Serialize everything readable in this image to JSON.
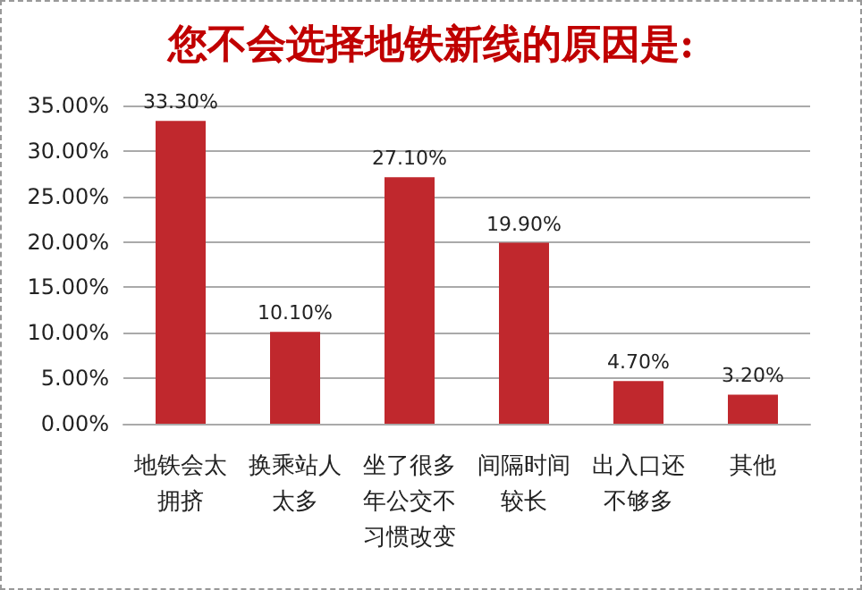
{
  "chart_data": {
    "type": "bar",
    "title": "您不会选择地铁新线的原因是:",
    "categories": [
      "地铁会太拥挤",
      "换乘站人太多",
      "坐了很多年公交不习惯改变",
      "间隔时间较长",
      "出入口还不够多",
      "其他"
    ],
    "values": [
      33.3,
      10.1,
      27.1,
      19.9,
      4.7,
      3.2
    ],
    "value_labels": [
      "33.30%",
      "10.10%",
      "27.10%",
      "19.90%",
      "4.70%",
      "3.20%"
    ],
    "color": "#c0282d",
    "ylim": [
      0,
      35
    ],
    "yticks": [
      {
        "value": 0,
        "label": "0.00%"
      },
      {
        "value": 5,
        "label": "5.00%"
      },
      {
        "value": 10,
        "label": "10.00%"
      },
      {
        "value": 15,
        "label": "15.00%"
      },
      {
        "value": 20,
        "label": "20.00%"
      },
      {
        "value": 25,
        "label": "25.00%"
      },
      {
        "value": 30,
        "label": "30.00%"
      },
      {
        "value": 35,
        "label": "35.00%"
      }
    ],
    "grid": "y"
  }
}
